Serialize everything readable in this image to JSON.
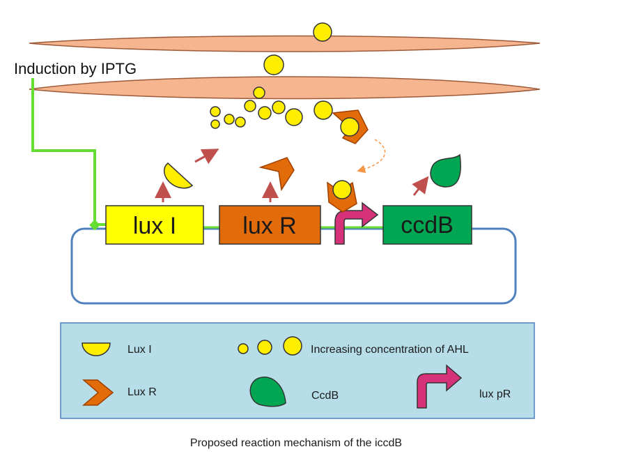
{
  "induction": {
    "label": "Induction by IPTG"
  },
  "genes": {
    "luxI": "lux I",
    "luxR": "lux R",
    "ccdB": "ccdB"
  },
  "legend": {
    "luxI": "Lux I",
    "ahl": "Increasing concentration of AHL",
    "luxR": "Lux R",
    "ccdB": "CcdB",
    "luxPR": "lux pR"
  },
  "caption": "Proposed reaction mechanism of the iccdB",
  "colors": {
    "membrane": "#f5b58e",
    "ahl": "#ffee00",
    "luxI_box": "#ffff00",
    "luxR_box": "#e36c0a",
    "ccdB_box": "#00a651",
    "promoter": "#d6327a",
    "plasmid": "#4f81bd",
    "iptg_line": "#66dd33",
    "arrow": "#c0504d",
    "legend_bg": "#b7dde8"
  }
}
